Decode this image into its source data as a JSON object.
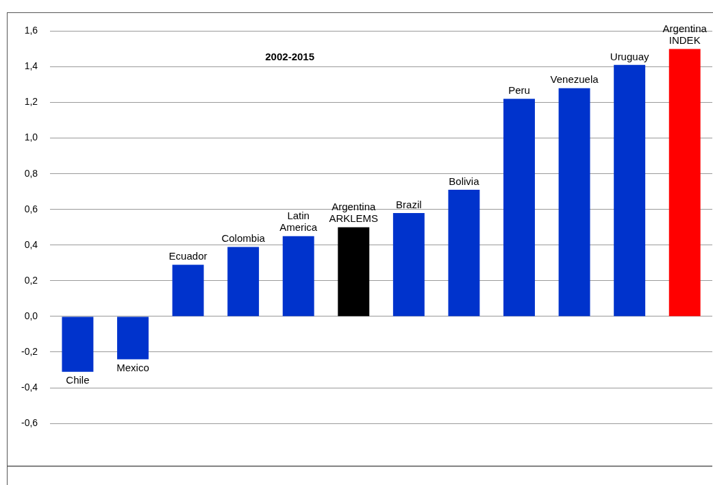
{
  "chart_data": {
    "type": "bar",
    "categories": [
      "Chile",
      "Mexico",
      "Ecuador",
      "Colombia",
      "Latin America",
      "Argentina ARKLEMS",
      "Brazil",
      "Bolivia",
      "Peru",
      "Venezuela",
      "Uruguay",
      "Argentina INDEK"
    ],
    "values": [
      -0.31,
      -0.24,
      0.29,
      0.39,
      0.45,
      0.5,
      0.58,
      0.71,
      1.22,
      1.28,
      1.41,
      1.5
    ],
    "colors": [
      "#0033cc",
      "#0033cc",
      "#0033cc",
      "#0033cc",
      "#0033cc",
      "#000000",
      "#0033cc",
      "#0033cc",
      "#0033cc",
      "#0033cc",
      "#0033cc",
      "#ff0000"
    ],
    "ylim": [
      -0.84,
      1.6
    ],
    "yticks": [
      {
        "value": -0.6,
        "label": "-0,6"
      },
      {
        "value": -0.4,
        "label": "-0,4"
      },
      {
        "value": -0.2,
        "label": "-0,2"
      },
      {
        "value": 0,
        "label": "0,0"
      },
      {
        "value": 0.2,
        "label": "0,2"
      },
      {
        "value": 0.4,
        "label": "0,4"
      },
      {
        "value": 0.6,
        "label": "0,6"
      },
      {
        "value": 0.8,
        "label": "0,8"
      },
      {
        "value": 1.0,
        "label": "1,0"
      },
      {
        "value": 1.2,
        "label": "1,2"
      },
      {
        "value": 1.4,
        "label": "1,4"
      },
      {
        "value": 1.6,
        "label": "1,6"
      }
    ],
    "grid": "y",
    "legend": false,
    "tick_labels": "y",
    "annotations": [
      "2002-2015"
    ]
  }
}
